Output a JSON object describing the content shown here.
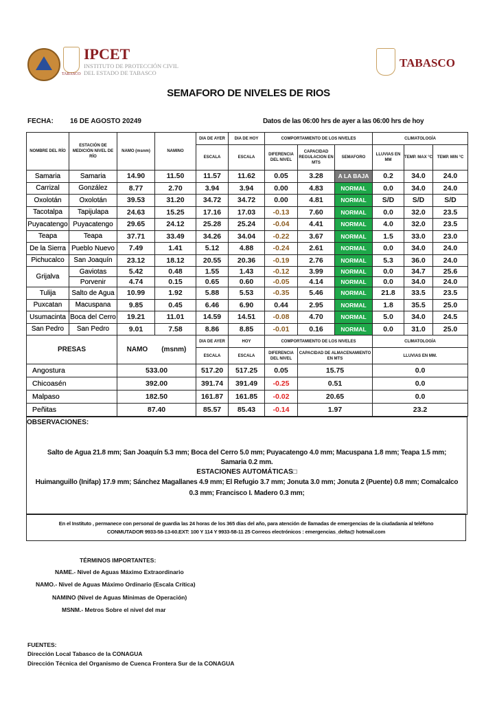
{
  "header": {
    "ipcet": "IPCET",
    "ipcet_sub1": "INSTITUTO DE PROTECCIÓN CIVIL",
    "ipcet_sub2": "DEL ESTADO DE TABASCO",
    "seal_text": "TABASCO",
    "tabasco": "TABASCO",
    "colors": {
      "brand": "#8a1e22",
      "orange": "#e07a1a"
    }
  },
  "title": "SEMAFORO DE NIVELES DE RIOS",
  "fecha_label": "FECHA:",
  "fecha": "16 DE AGOSTO 20249",
  "datos": "Datos de las 06:00 hrs  de ayer a las 06:00 hrs de hoy",
  "rivers_header": {
    "rio": "NOMBRE DEL RÍO",
    "estacion": "ESTACIÓN DE MEDICIÓN NIVEL DE RÍO",
    "namo": "NAMO (msnm)",
    "namino": "NAMINO",
    "ayer": "DIA DE AYER",
    "hoy": "DIA DE HOY",
    "escala": "ESCALA",
    "comportamiento": "COMPORTAMIENTO DE LOS NIVELES",
    "climatologia": "CLIMATOLOGÍA",
    "diferencia": "DIFERENCIA DEL NIVEL",
    "capacidad": "CAPACIDAD REGULACION EN MTS",
    "semaforo": "SEMAFORO",
    "lluvias": "LLUVIAS EN MM",
    "tmax": "TEMP. MAX °C",
    "tmin": "TEMP.  MIN °C"
  },
  "rivers": [
    [
      "Samaria",
      "Samaria",
      "14.90",
      "11.50",
      "11.57",
      "11.62",
      "0.05",
      "3.28",
      "A LA BAJA",
      "0.2",
      "34.0",
      "24.0"
    ],
    [
      "Carrizal",
      "González",
      "8.77",
      "2.70",
      "3.94",
      "3.94",
      "0.00",
      "4.83",
      "NORMAL",
      "0.0",
      "34.0",
      "24.0"
    ],
    [
      "Oxolotán",
      "Oxolotán",
      "39.53",
      "31.20",
      "34.72",
      "34.72",
      "0.00",
      "4.81",
      "NORMAL",
      "S/D",
      "S/D",
      "S/D"
    ],
    [
      "Tacotalpa",
      "Tapijulapa",
      "24.63",
      "15.25",
      "17.16",
      "17.03",
      "-0.13",
      "7.60",
      "NORMAL",
      "0.0",
      "32.0",
      "23.5"
    ],
    [
      "Puyacatengo",
      "Puyacatengo",
      "29.65",
      "24.12",
      "25.28",
      "25.24",
      "-0.04",
      "4.41",
      "NORMAL",
      "4.0",
      "32.0",
      "23.5"
    ],
    [
      "Teapa",
      "Teapa",
      "37.71",
      "33.49",
      "34.26",
      "34.04",
      "-0.22",
      "3.67",
      "NORMAL",
      "1.5",
      "33.0",
      "23.0"
    ],
    [
      "De la Sierra",
      "Pueblo Nuevo",
      "7.49",
      "1.41",
      "5.12",
      "4.88",
      "-0.24",
      "2.61",
      "NORMAL",
      "0.0",
      "34.0",
      "24.0"
    ],
    [
      "Pichucalco",
      "San Joaquín",
      "23.12",
      "18.12",
      "20.55",
      "20.36",
      "-0.19",
      "2.76",
      "NORMAL",
      "5.3",
      "36.0",
      "24.0"
    ],
    [
      "Grijalva",
      "Gaviotas",
      "5.42",
      "0.48",
      "1.55",
      "1.43",
      "-0.12",
      "3.99",
      "NORMAL",
      "0.0",
      "34.7",
      "25.6"
    ],
    [
      "",
      "Porvenir",
      "4.74",
      "0.15",
      "0.65",
      "0.60",
      "-0.05",
      "4.14",
      "NORMAL",
      "0.0",
      "34.0",
      "24.0"
    ],
    [
      "Tulija",
      "Salto de Agua",
      "10.99",
      "1.92",
      "5.88",
      "5.53",
      "-0.35",
      "5.46",
      "NORMAL",
      "21.8",
      "33.5",
      "23.5"
    ],
    [
      "Puxcatan",
      "Macuspana",
      "9.85",
      "0.45",
      "6.46",
      "6.90",
      "0.44",
      "2.95",
      "NORMAL",
      "1.8",
      "35.5",
      "25.0"
    ],
    [
      "Usumacinta",
      "Boca del Cerro",
      "19.21",
      "11.01",
      "14.59",
      "14.51",
      "-0.08",
      "4.70",
      "NORMAL",
      "5.0",
      "34.0",
      "24.5"
    ],
    [
      "San Pedro",
      "San Pedro",
      "9.01",
      "7.58",
      "8.86",
      "8.85",
      "-0.01",
      "0.16",
      "NORMAL",
      "0.0",
      "31.0",
      "25.0"
    ]
  ],
  "presas_header": {
    "presas": "PRESAS",
    "namo": "NAMO",
    "msnm": "(msnm)",
    "ayer": "DIA DE AYER",
    "hoy": "HOY",
    "escala": "ESCALA",
    "comportamiento": "COMPORTAMIENTO DE LOS NIVELES",
    "climatologia": "CLIMATOLOGÍA",
    "diferencia": "DIFERENCIA DEL NIVEL",
    "capacidad": "CAPACIDAD DE ALMACENAMIENTO EN MTS",
    "lluvias": "LLUVIAS EN MM."
  },
  "presas": [
    [
      "Angostura",
      "533.00",
      "517.20",
      "517.25",
      "0.05",
      "15.75",
      "0.0"
    ],
    [
      "Chicoasén",
      "392.00",
      "391.74",
      "391.49",
      "-0.25",
      "0.51",
      "0.0"
    ],
    [
      "Malpaso",
      "182.50",
      "161.87",
      "161.85",
      "-0.02",
      "20.65",
      "0.0"
    ],
    [
      "Peñitas",
      "87.40",
      "85.57",
      "85.43",
      "-0.14",
      "1.97",
      "23.2"
    ]
  ],
  "colors": {
    "normal": "#1fa84a",
    "baja": "#7a7a7a",
    "neg_river": "#8a5a1e",
    "neg_presa": "#e02020"
  },
  "obs": {
    "label": "OBSERVACIONES:",
    "line1": "Salto de Agua 21.8 mm;  San Joaquín 5.3 mm; Boca del Cerro 5.0 mm; Puyacatengo 4.0 mm; Macuspana 1.8 mm; Teapa 1.5 mm; Samaria 0.2 mm.",
    "auto": "ESTACIONES AUTOMÁTICAS□",
    "line2": "Huimanguillo (Inifap) 17.9 mm; Sánchez Magallanes 4.9 mm; El Refugio 3.7 mm; Jonuta 3.0 mm; Jonuta 2 (Puente) 0.8 mm; Comalcalco 0.3 mm; Francisco I. Madero 0.3 mm;"
  },
  "contact": {
    "line1": "En el Instituto , permanece con personal de guardia las 24 horas de los 365 días del año, para atención de llamadas de emergencias de la ciudadanía al teléfono",
    "line2": "CONMUTADOR  9933-58-13-60.EXT: 100 Y 114  Y 9933-58-11 25   Correos electrónicos : emergencias_delta@ hotmail.com"
  },
  "terms": {
    "title": "TÉRMINOS IMPORTANTES:",
    "name": "NAME.-  Nivel de Aguas Máximo Extraordinario",
    "namo": "NAMO.-  Nivel de Aguas Máximo Ordinario (Escala Crítica)",
    "namino": "NAMINO (Nivel de Aguas Mínimas de Operación)",
    "msnm": "MSNM.-  Metros Sobre el nivel del mar"
  },
  "fuentes": {
    "title": "FUENTES:",
    "l1": "Dirección Local Tabasco de la CONAGUA",
    "l2": "Dirección Técnica del Organismo de Cuenca Frontera Sur de la CONAGUA"
  }
}
